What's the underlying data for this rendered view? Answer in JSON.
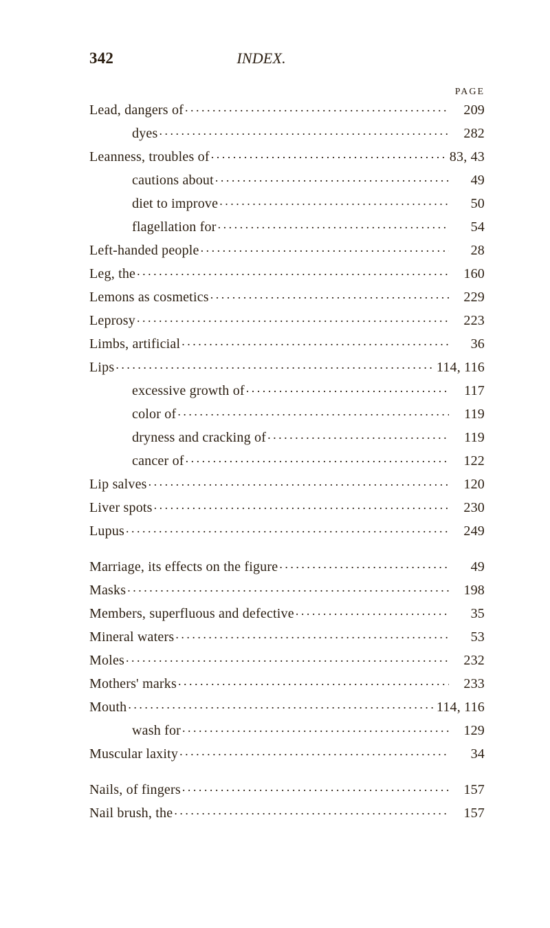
{
  "header": {
    "pageNumber": "342",
    "sectionTitle": "INDEX.",
    "pageLabel": "PAGE"
  },
  "style": {
    "backgroundColor": "#ffffff",
    "textColor": "#2a1d10",
    "bodyFontSize": 20,
    "headerFontSize": 23,
    "labelFontSize": 14
  },
  "groups": [
    {
      "entries": [
        {
          "label": "Lead, dangers of",
          "page": "209",
          "indent": 0
        },
        {
          "label": "dyes",
          "page": "282",
          "indent": 1
        },
        {
          "label": "Leanness, troubles of",
          "page": "83, 43",
          "indent": 0
        },
        {
          "label": "cautions about",
          "page": "49",
          "indent": 1
        },
        {
          "label": "diet to improve",
          "page": "50",
          "indent": 1
        },
        {
          "label": "flagellation for",
          "page": "54",
          "indent": 1
        },
        {
          "label": "Left-handed people",
          "page": "28",
          "indent": 0
        },
        {
          "label": "Leg, the",
          "page": "160",
          "indent": 0
        },
        {
          "label": "Lemons as cosmetics",
          "page": "229",
          "indent": 0
        },
        {
          "label": "Leprosy",
          "page": "223",
          "indent": 0
        },
        {
          "label": "Limbs, artificial",
          "page": "36",
          "indent": 0
        },
        {
          "label": "Lips",
          "page": "114, 116",
          "indent": 0
        },
        {
          "label": "excessive growth of",
          "page": "117",
          "indent": 1
        },
        {
          "label": "color of",
          "page": "119",
          "indent": 1
        },
        {
          "label": "dryness and cracking of",
          "page": "119",
          "indent": 1
        },
        {
          "label": "cancer of",
          "page": "122",
          "indent": 1
        },
        {
          "label": "Lip salves",
          "page": "120",
          "indent": 0
        },
        {
          "label": "Liver spots",
          "page": "230",
          "indent": 0
        },
        {
          "label": "Lupus",
          "page": "249",
          "indent": 0
        }
      ]
    },
    {
      "entries": [
        {
          "label": "Marriage, its effects on the figure",
          "page": "49",
          "indent": 0
        },
        {
          "label": "Masks",
          "page": "198",
          "indent": 0
        },
        {
          "label": "Members, superfluous and defective",
          "page": "35",
          "indent": 0
        },
        {
          "label": "Mineral waters",
          "page": "53",
          "indent": 0
        },
        {
          "label": "Moles",
          "page": "232",
          "indent": 0
        },
        {
          "label": "Mothers' marks",
          "page": "233",
          "indent": 0
        },
        {
          "label": "Mouth",
          "page": "114, 116",
          "indent": 0
        },
        {
          "label": "wash for",
          "page": "129",
          "indent": 1
        },
        {
          "label": "Muscular laxity",
          "page": "34",
          "indent": 0
        }
      ]
    },
    {
      "entries": [
        {
          "label": "Nails, of fingers",
          "page": "157",
          "indent": 0
        },
        {
          "label": "Nail brush, the",
          "page": "157",
          "indent": 0
        }
      ]
    }
  ]
}
